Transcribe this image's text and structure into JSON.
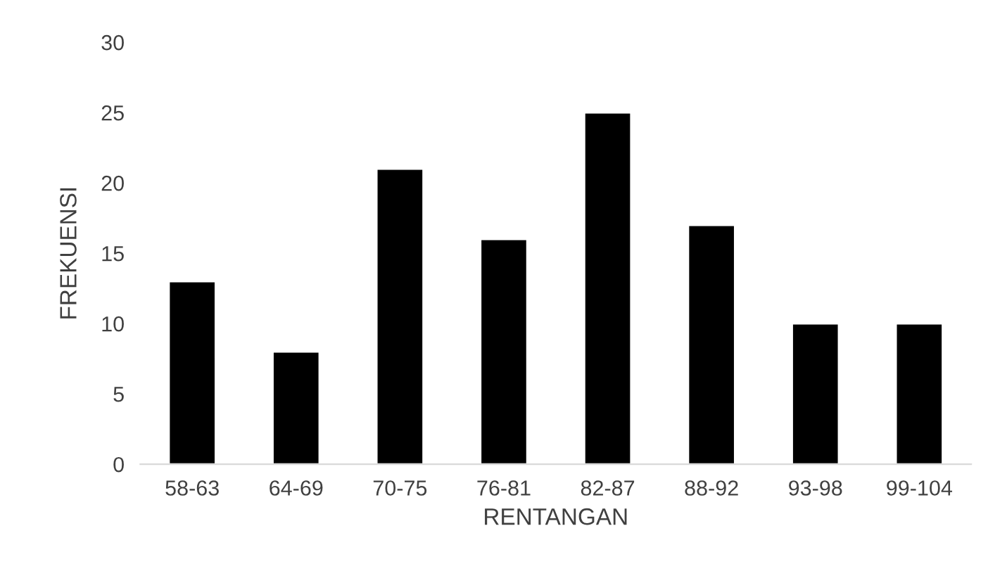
{
  "chart_data": {
    "type": "bar",
    "xlabel": "RENTANGAN",
    "ylabel": "FREKUENSI",
    "categories": [
      "58-63",
      "64-69",
      "70-75",
      "76-81",
      "82-87",
      "88-92",
      "93-98",
      "99-104"
    ],
    "values": [
      13,
      8,
      21,
      16,
      25,
      17,
      10,
      10
    ],
    "color": "#000000",
    "ylim": [
      0,
      30
    ],
    "yticks": [
      0,
      5,
      10,
      15,
      20,
      25,
      30
    ],
    "grid": false,
    "legend": false
  }
}
